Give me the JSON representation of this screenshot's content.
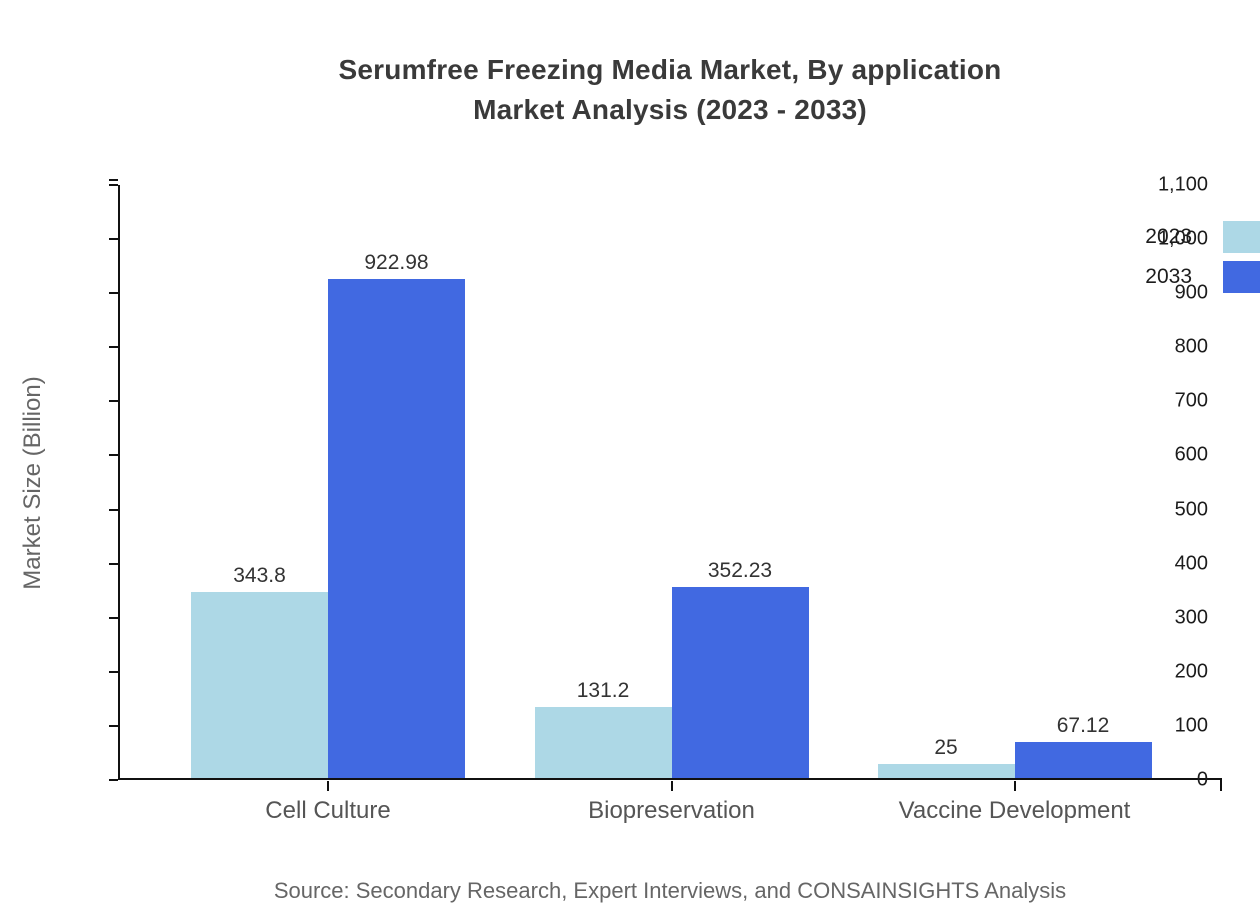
{
  "title": {
    "line1": "Serumfree Freezing Media Market, By application",
    "line2": "Market Analysis (2023 - 2033)"
  },
  "source": "Source: Secondary Research, Expert Interviews, and CONSAINSIGHTS Analysis",
  "legend": {
    "items": [
      {
        "label": "2023",
        "color": "#ADD8E6"
      },
      {
        "label": "2033",
        "color": "#4169E1"
      }
    ]
  },
  "chart_data": {
    "type": "bar",
    "title": "Serumfree Freezing Media Market, By application Market Analysis (2023 - 2033)",
    "categories": [
      "Cell Culture",
      "Biopreservation",
      "Vaccine Development"
    ],
    "series": [
      {
        "name": "2023",
        "color": "#ADD8E6",
        "values": [
          343.8,
          131.2,
          25
        ]
      },
      {
        "name": "2033",
        "color": "#4169E1",
        "values": [
          922.98,
          352.23,
          67.12
        ]
      }
    ],
    "value_labels": [
      [
        "343.8",
        "131.2",
        "25"
      ],
      [
        "922.98",
        "352.23",
        "67.12"
      ]
    ],
    "xlabel": "",
    "ylabel": "Market Size (Billion)",
    "ylim": [
      0,
      1100
    ],
    "ytick_step": 100,
    "ytick_labels": [
      "0",
      "100",
      "200",
      "300",
      "400",
      "500",
      "600",
      "700",
      "800",
      "900",
      "1,000",
      "1,100"
    ],
    "grid": false,
    "legend_position": "top-right",
    "bar_value_labels_shown": true
  }
}
